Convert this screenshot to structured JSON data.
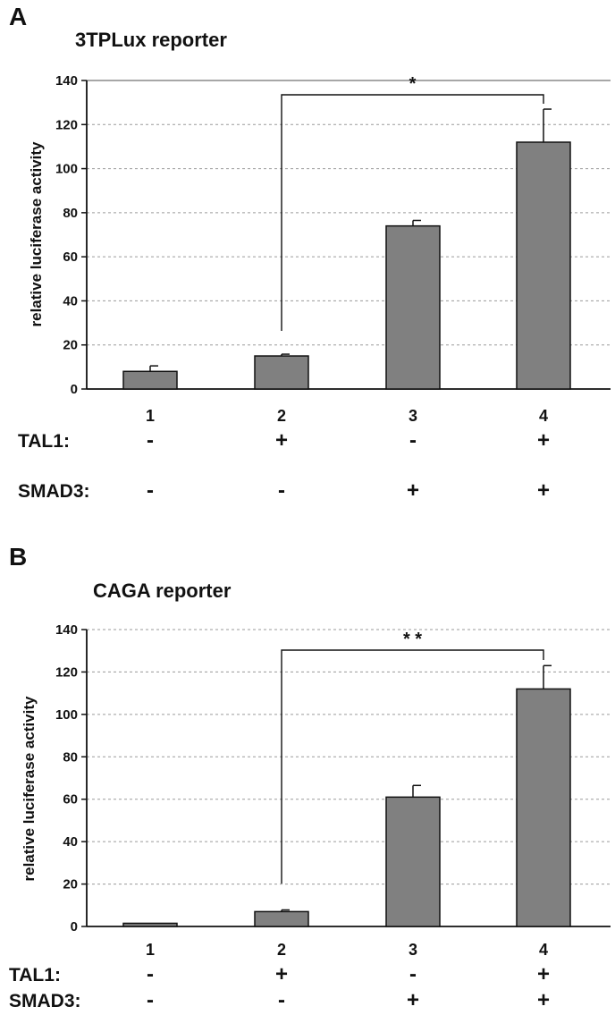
{
  "chart_data": [
    {
      "panel": "A",
      "type": "bar",
      "title": "3TPLux reporter",
      "ylabel": "relative luciferase activity",
      "ylim": [
        0,
        140
      ],
      "yticks": [
        0,
        20,
        40,
        60,
        80,
        100,
        120,
        140
      ],
      "grid": true,
      "categories": [
        "1",
        "2",
        "3",
        "4"
      ],
      "values": [
        8,
        15,
        74,
        112
      ],
      "errors": [
        2.5,
        0.8,
        2.5,
        15
      ],
      "conditions": [
        {
          "label": "TAL1:",
          "signs": [
            "-",
            "+",
            "-",
            "+"
          ]
        },
        {
          "label": "SMAD3:",
          "signs": [
            "-",
            "-",
            "+",
            "+"
          ]
        }
      ],
      "significance": {
        "from": 1,
        "to": 3,
        "label": "*"
      },
      "color": "#808080"
    },
    {
      "panel": "B",
      "type": "bar",
      "title": "CAGA reporter",
      "ylabel": "relative luciferase activity",
      "ylim": [
        0,
        140
      ],
      "yticks": [
        0,
        20,
        40,
        60,
        80,
        100,
        120,
        140
      ],
      "grid": true,
      "categories": [
        "1",
        "2",
        "3",
        "4"
      ],
      "values": [
        1.5,
        7,
        61,
        112
      ],
      "errors": [
        0,
        0.8,
        5.5,
        11
      ],
      "conditions": [
        {
          "label": "TAL1:",
          "signs": [
            "-",
            "+",
            "-",
            "+"
          ]
        },
        {
          "label": "SMAD3:",
          "signs": [
            "-",
            "-",
            "+",
            "+"
          ]
        }
      ],
      "significance": {
        "from": 1,
        "to": 3,
        "label": "* *"
      },
      "color": "#808080"
    }
  ]
}
